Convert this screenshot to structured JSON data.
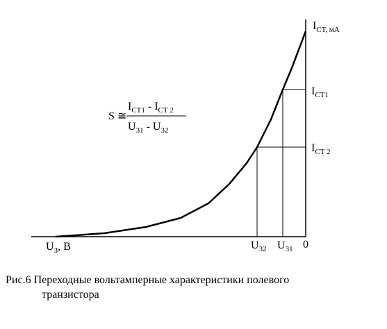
{
  "y_axis": {
    "symbol": "I",
    "sub": "СТ, мА"
  },
  "x_axis": {
    "symbol": "U",
    "sub": "З",
    "unit": ", В"
  },
  "origin": "0",
  "x_marks": [
    {
      "symbol": "U",
      "sub": "32"
    },
    {
      "symbol": "U",
      "sub": "31"
    }
  ],
  "y_marks": [
    {
      "symbol": "I",
      "sub": "СТ1"
    },
    {
      "symbol": "I",
      "sub": "СТ 2"
    }
  ],
  "formula": {
    "lhs": "S ≅",
    "numerator": [
      {
        "symbol": "I",
        "sub": "СТ1"
      },
      {
        "op": " - "
      },
      {
        "symbol": "I",
        "sub": "СТ 2"
      }
    ],
    "denominator": [
      {
        "symbol": "U",
        "sub": "31"
      },
      {
        "op": " - "
      },
      {
        "symbol": "U",
        "sub": "32"
      }
    ]
  },
  "caption": [
    "Рис.6 Переходные вольтамперные характеристики полевого",
    "транзистора"
  ]
}
